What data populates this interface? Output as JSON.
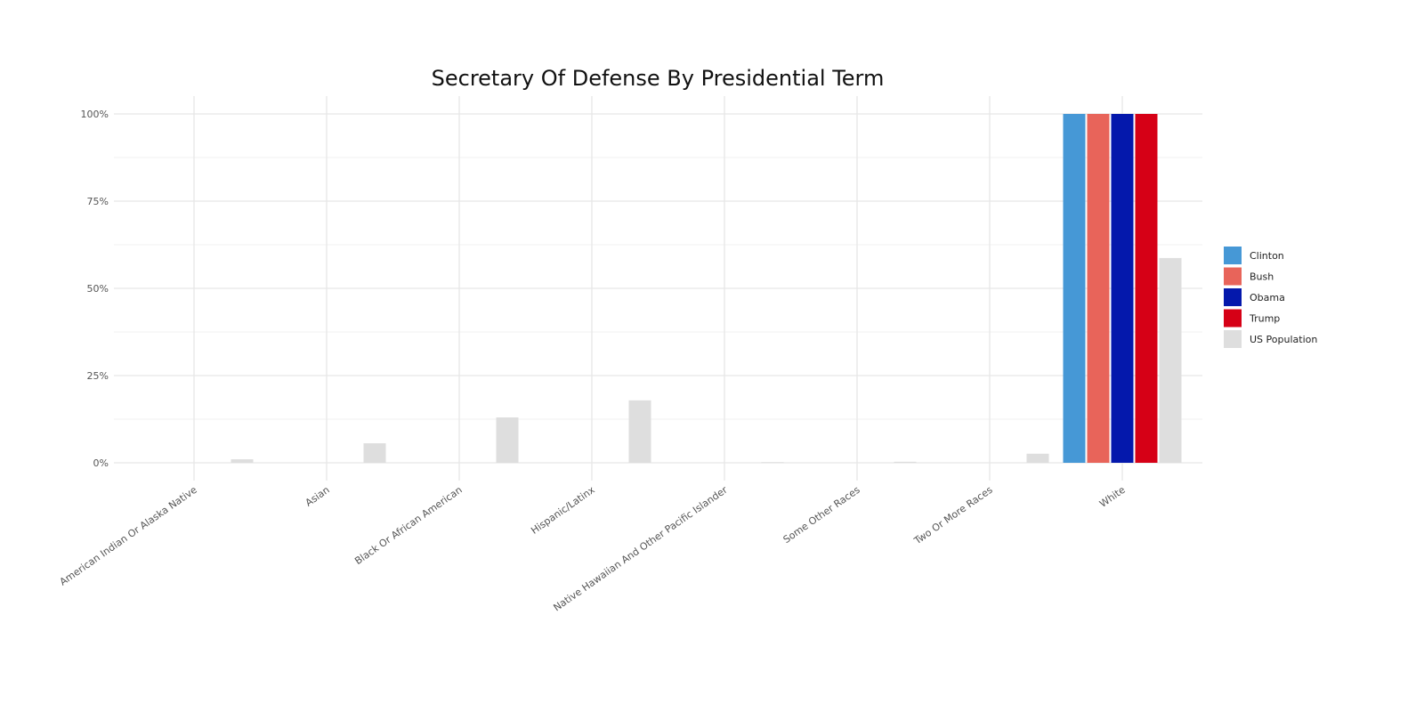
{
  "chart_data": {
    "type": "bar",
    "title": "Secretary Of Defense By Presidential Term",
    "xlabel": "",
    "ylabel": "",
    "ylim": [
      0,
      1
    ],
    "y_ticks": [
      "0%",
      "25%",
      "50%",
      "75%",
      "100%"
    ],
    "grid": true,
    "legend_position": "right",
    "categories": [
      "American Indian Or Alaska Native",
      "Asian",
      "Black Or African American",
      "Hispanic/Latinx",
      "Native Hawaiian And Other Pacific Islander",
      "Some Other Races",
      "Two Or More Races",
      "White"
    ],
    "series": [
      {
        "name": "Clinton",
        "color": "#4698d6",
        "values": [
          0,
          0,
          0,
          0,
          0,
          0,
          0,
          1.0
        ]
      },
      {
        "name": "Bush",
        "color": "#e8645a",
        "values": [
          0,
          0,
          0,
          0,
          0,
          0,
          0,
          1.0
        ]
      },
      {
        "name": "Obama",
        "color": "#0418ac",
        "values": [
          0,
          0,
          0,
          0,
          0,
          0,
          0,
          1.0
        ]
      },
      {
        "name": "Trump",
        "color": "#d60016",
        "values": [
          0,
          0,
          0,
          0,
          0,
          0,
          0,
          1.0
        ]
      },
      {
        "name": "US Population",
        "color": "#dedede",
        "values": [
          0.01,
          0.056,
          0.13,
          0.179,
          0.002,
          0.003,
          0.026,
          0.587
        ]
      }
    ]
  }
}
